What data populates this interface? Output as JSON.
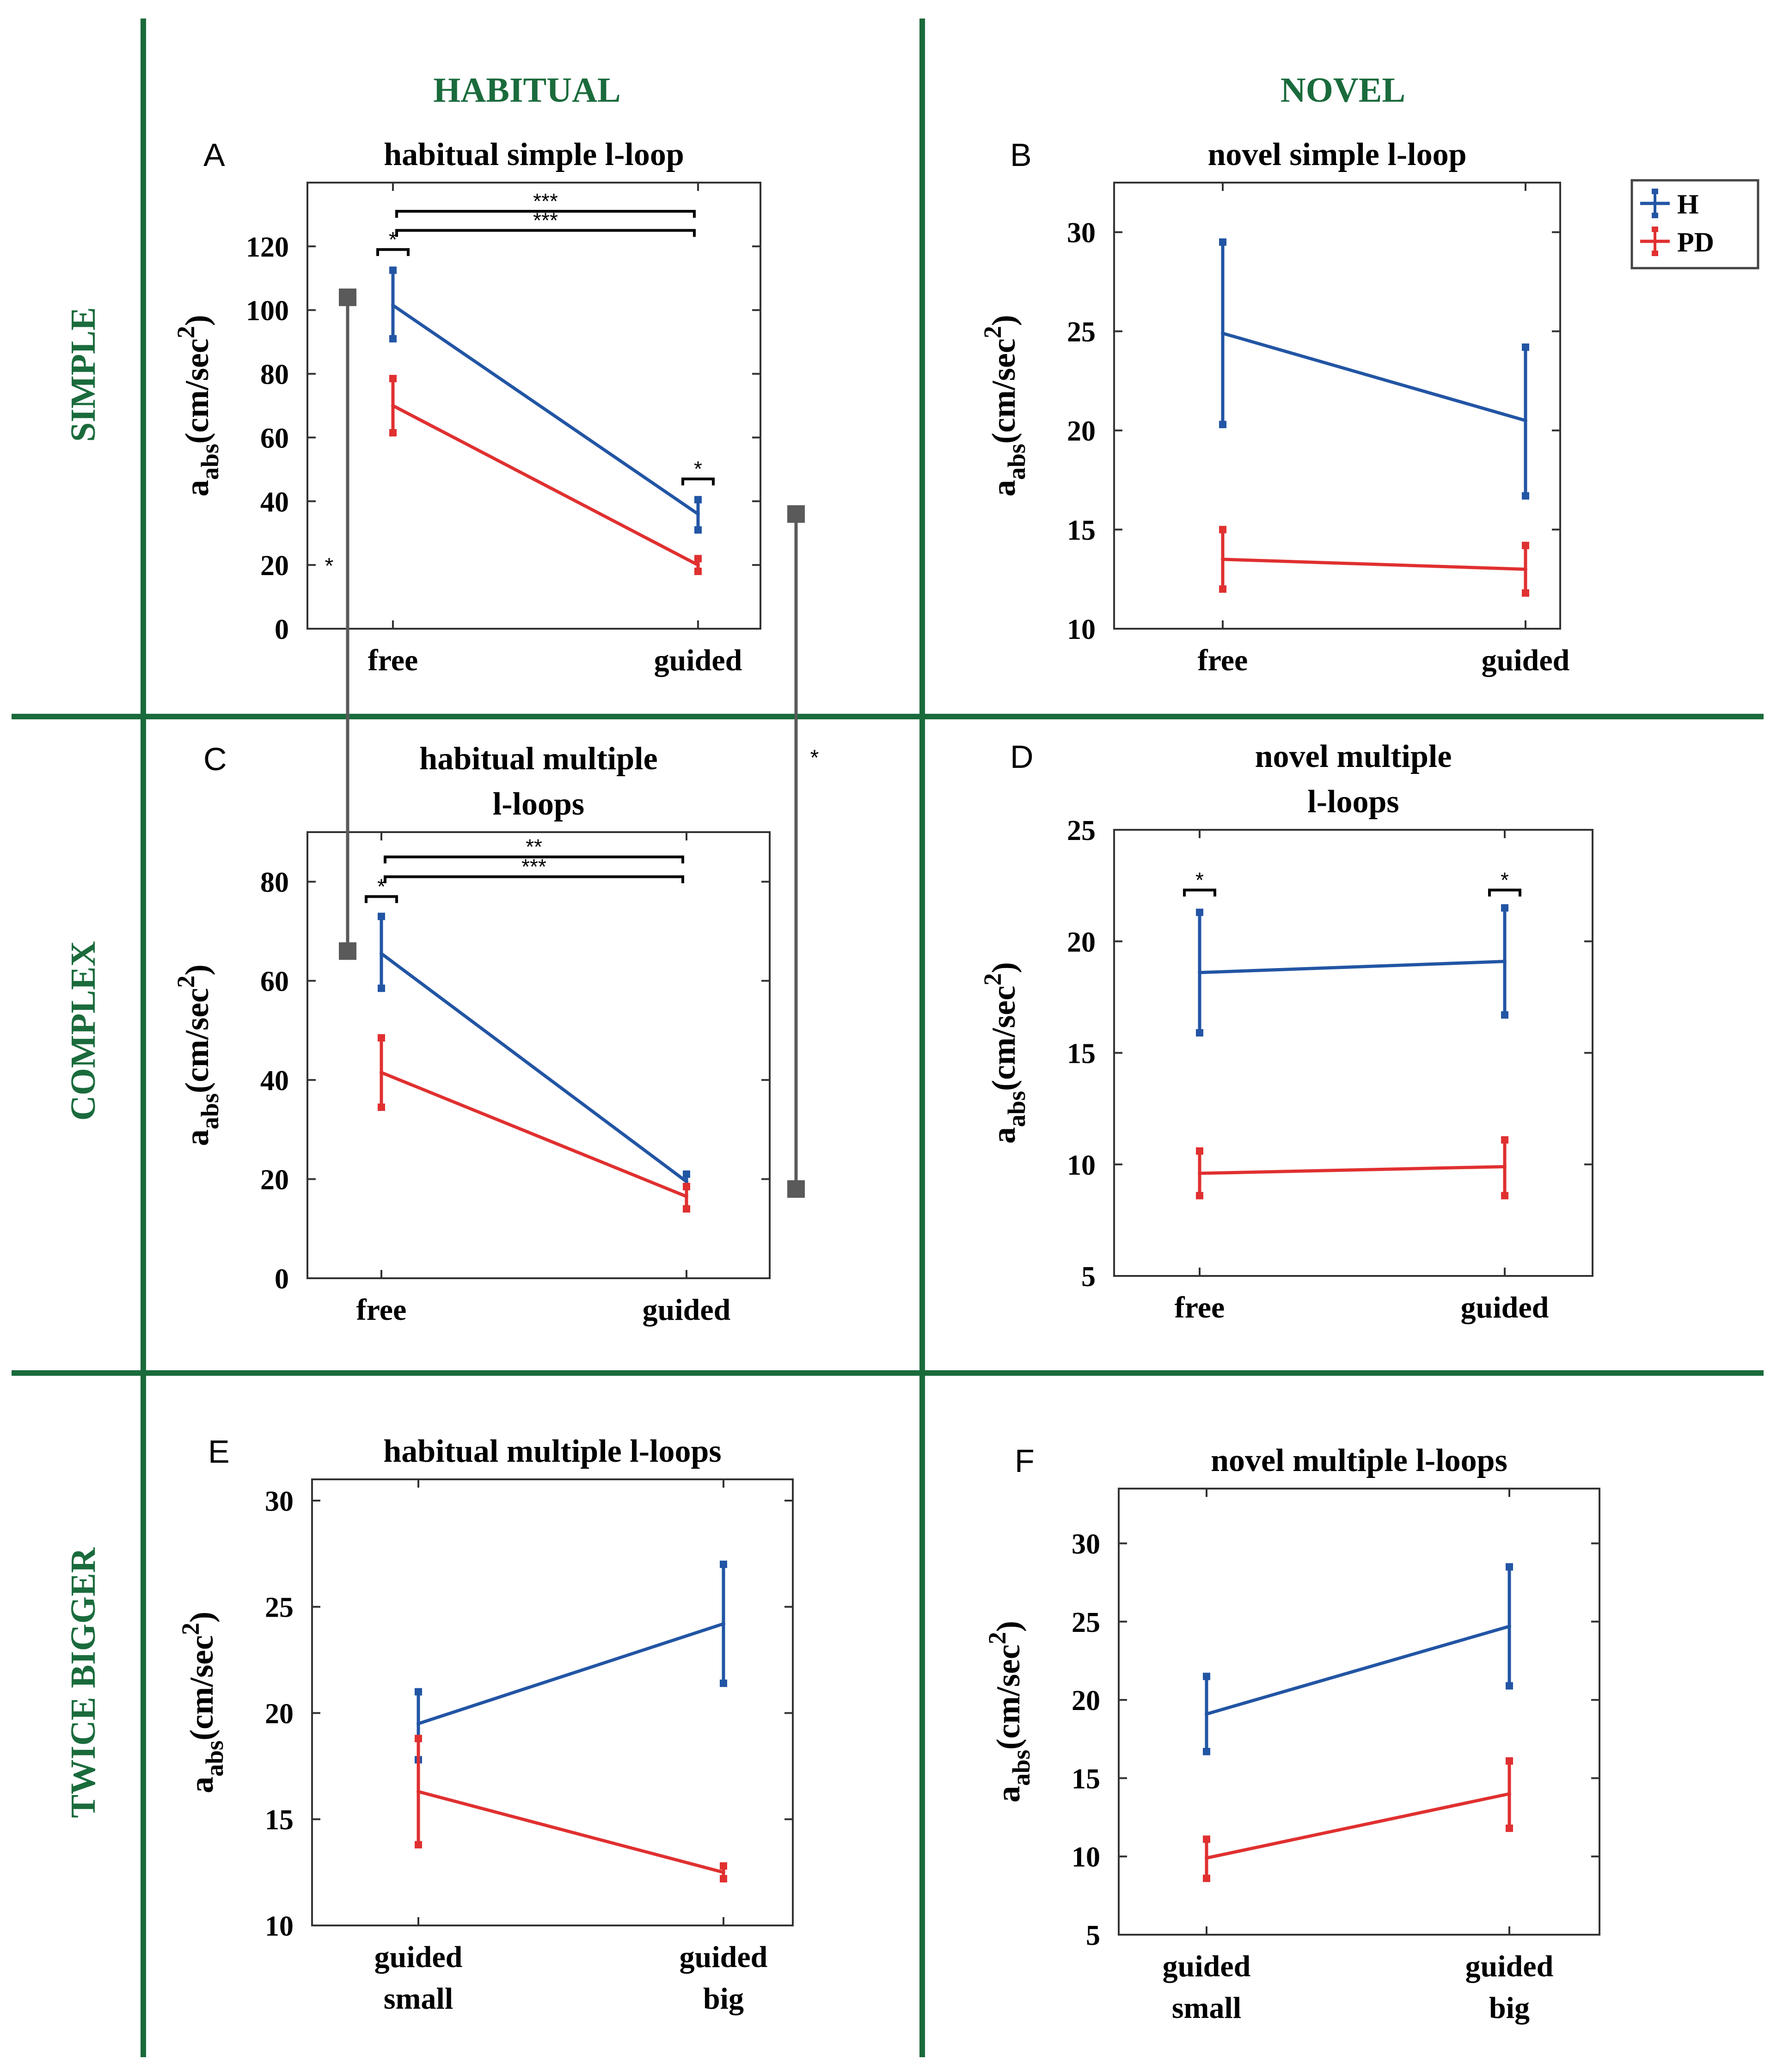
{
  "colors": {
    "H": "#2255a4",
    "PD": "#e03030",
    "grid_line": "#1a6b3c",
    "header_text": "#1a6b3c",
    "axis": "#333333",
    "connector": "#5a5a5a"
  },
  "columns": [
    "HABITUAL",
    "NOVEL"
  ],
  "rows": [
    "SIMPLE",
    "COMPLEX",
    "TWICE BIGGER"
  ],
  "legend": {
    "items": [
      "H",
      "PD"
    ]
  },
  "ylabel_main": "a",
  "ylabel_sub": "abs",
  "ylabel_unit": "(cm/sec",
  "ylabel_sup": "2",
  "ylabel_close": ")",
  "cross_panel": [
    {
      "id": "A-C",
      "from": {
        "panel": "A",
        "y": 104
      },
      "to": {
        "panel": "C",
        "y": 66
      },
      "label": "*"
    },
    {
      "id": "A-C-guided",
      "from": {
        "panel": "A",
        "y": 36
      },
      "to": {
        "panel": "C",
        "y": 18
      },
      "label": "*"
    }
  ],
  "chart_data": [
    {
      "id": "A",
      "letter": "A",
      "type": "line",
      "title": [
        "habitual simple l-loop"
      ],
      "categories": [
        [
          "free"
        ],
        [
          "guided"
        ]
      ],
      "ylim": [
        0,
        140
      ],
      "yticks": [
        0,
        20,
        40,
        60,
        80,
        100,
        120
      ],
      "series": [
        {
          "name": "H",
          "values": [
            101.5,
            36
          ],
          "err_low": [
            91,
            31
          ],
          "err_high": [
            112.5,
            40.5
          ]
        },
        {
          "name": "PD",
          "values": [
            70,
            20
          ],
          "err_low": [
            61.5,
            18
          ],
          "err_high": [
            78.5,
            22
          ]
        }
      ],
      "brackets": [
        {
          "x0": 0,
          "x1": 1,
          "y": 131,
          "label": "***"
        },
        {
          "x0": 0,
          "x1": 1,
          "y": 125,
          "label": "***"
        },
        {
          "x0": -0.05,
          "x1": 0.05,
          "y": 119,
          "label": "*"
        },
        {
          "x0": 0.95,
          "x1": 1.05,
          "y": 47,
          "label": "*"
        }
      ]
    },
    {
      "id": "B",
      "letter": "B",
      "type": "line",
      "title": [
        "novel simple l-loop"
      ],
      "categories": [
        [
          "free"
        ],
        [
          "guided"
        ]
      ],
      "ylim": [
        10,
        32.5
      ],
      "yticks": [
        10,
        15,
        20,
        25,
        30
      ],
      "series": [
        {
          "name": "H",
          "values": [
            24.9,
            20.5
          ],
          "err_low": [
            20.3,
            16.7
          ],
          "err_high": [
            29.5,
            24.2
          ]
        },
        {
          "name": "PD",
          "values": [
            13.5,
            13
          ],
          "err_low": [
            12,
            11.8
          ],
          "err_high": [
            15,
            14.2
          ]
        }
      ],
      "brackets": []
    },
    {
      "id": "C",
      "letter": "C",
      "type": "line",
      "title": [
        "habitual multiple",
        "l-loops"
      ],
      "categories": [
        [
          "free"
        ],
        [
          "guided"
        ]
      ],
      "ylim": [
        0,
        90
      ],
      "yticks": [
        0,
        20,
        40,
        60,
        80
      ],
      "series": [
        {
          "name": "H",
          "values": [
            65.5,
            19.5
          ],
          "err_low": [
            58.5,
            18.5
          ],
          "err_high": [
            73,
            21
          ]
        },
        {
          "name": "PD",
          "values": [
            41.5,
            16.5
          ],
          "err_low": [
            34.5,
            14
          ],
          "err_high": [
            48.5,
            18.5
          ]
        }
      ],
      "brackets": [
        {
          "x0": 0,
          "x1": 1,
          "y": 85,
          "label": "**"
        },
        {
          "x0": 0,
          "x1": 1,
          "y": 81,
          "label": "***"
        },
        {
          "x0": -0.05,
          "x1": 0.05,
          "y": 77,
          "label": "*"
        }
      ]
    },
    {
      "id": "D",
      "letter": "D",
      "type": "line",
      "title": [
        "novel multiple",
        "l-loops"
      ],
      "categories": [
        [
          "free"
        ],
        [
          "guided"
        ]
      ],
      "ylim": [
        5,
        25
      ],
      "yticks": [
        5,
        10,
        15,
        20,
        25
      ],
      "series": [
        {
          "name": "H",
          "values": [
            18.6,
            19.1
          ],
          "err_low": [
            15.9,
            16.7
          ],
          "err_high": [
            21.3,
            21.5
          ]
        },
        {
          "name": "PD",
          "values": [
            9.6,
            9.9
          ],
          "err_low": [
            8.6,
            8.6
          ],
          "err_high": [
            10.6,
            11.1
          ]
        }
      ],
      "brackets": [
        {
          "x0": -0.05,
          "x1": 0.05,
          "y": 22.3,
          "label": "*"
        },
        {
          "x0": 0.95,
          "x1": 1.05,
          "y": 22.3,
          "label": "*"
        }
      ]
    },
    {
      "id": "E",
      "letter": "E",
      "type": "line",
      "title": [
        "habitual multiple l-loops"
      ],
      "categories": [
        [
          "guided",
          "small"
        ],
        [
          "guided",
          "big"
        ]
      ],
      "ylim": [
        10,
        31
      ],
      "yticks": [
        10,
        15,
        20,
        25,
        30
      ],
      "series": [
        {
          "name": "H",
          "values": [
            19.5,
            24.2
          ],
          "err_low": [
            17.8,
            21.4
          ],
          "err_high": [
            21,
            27
          ]
        },
        {
          "name": "PD",
          "values": [
            16.3,
            12.5
          ],
          "err_low": [
            13.8,
            12.2
          ],
          "err_high": [
            18.8,
            12.8
          ]
        }
      ],
      "brackets": []
    },
    {
      "id": "F",
      "letter": "F",
      "type": "line",
      "title": [
        "novel multiple l-loops"
      ],
      "categories": [
        [
          "guided",
          "small"
        ],
        [
          "guided",
          "big"
        ]
      ],
      "ylim": [
        5,
        33.5
      ],
      "yticks": [
        5,
        10,
        15,
        20,
        25,
        30
      ],
      "series": [
        {
          "name": "H",
          "values": [
            19.1,
            24.7
          ],
          "err_low": [
            16.7,
            20.9
          ],
          "err_high": [
            21.5,
            28.5
          ]
        },
        {
          "name": "PD",
          "values": [
            9.9,
            14
          ],
          "err_low": [
            8.6,
            11.8
          ],
          "err_high": [
            11.1,
            16.1
          ]
        }
      ],
      "brackets": []
    }
  ]
}
